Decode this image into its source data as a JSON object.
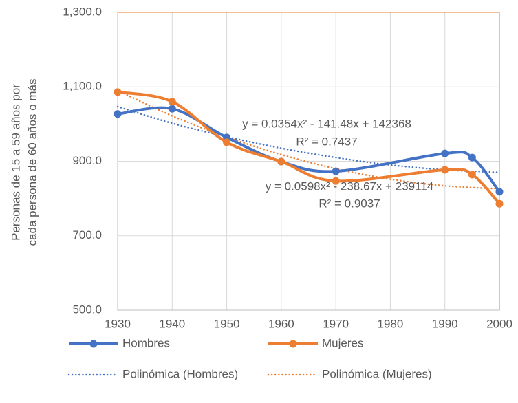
{
  "chart_data": {
    "type": "line",
    "ylabel": [
      "Personas de 15 a 59 años por",
      "cada persona de 60 años o más"
    ],
    "x": [
      1930,
      1940,
      1950,
      1960,
      1970,
      1990,
      1995,
      2000
    ],
    "series": [
      {
        "name": "Hombres",
        "color": "#4472c4",
        "values": [
          1027,
          1041,
          964,
          899,
          873,
          921,
          910,
          818
        ]
      },
      {
        "name": "Mujeres",
        "color": "#ed7d31",
        "values": [
          1086,
          1060,
          951,
          899,
          847,
          877,
          864,
          786
        ]
      }
    ],
    "trendlines": [
      {
        "name": "Polinómica (Hombres)",
        "color": "#4472c4",
        "style": "dotted",
        "x": [
          1930,
          1940,
          1950,
          1960,
          1970,
          1980,
          1990,
          2000
        ],
        "values": [
          1047,
          1002,
          966,
          935,
          910,
          890,
          877,
          870
        ],
        "equation": "y = 0.0354x² - 141.48x + 142368",
        "r2": "R² = 0.7437"
      },
      {
        "name": "Polinómica (Mujeres)",
        "color": "#ed7d31",
        "style": "dotted",
        "x": [
          1930,
          1940,
          1950,
          1960,
          1970,
          1980,
          1990,
          2000
        ],
        "values": [
          1090,
          1022,
          965,
          918,
          880,
          852,
          834,
          826
        ],
        "equation": "y = 0.0598x² - 238.67x + 239114",
        "r2": "R² = 0.9037"
      }
    ],
    "xlim": [
      1930,
      2000
    ],
    "xticks": [
      1930,
      1940,
      1950,
      1960,
      1970,
      1980,
      1990,
      2000
    ],
    "ylim": [
      500,
      1300
    ],
    "yticks": [
      {
        "value": 500,
        "label": "500.0"
      },
      {
        "value": 700,
        "label": "700.0"
      },
      {
        "value": 900,
        "label": "900.0"
      },
      {
        "value": 1100,
        "label": "1,100.0"
      },
      {
        "value": 1300,
        "label": "1,300.0"
      }
    ],
    "grid": true,
    "legend": "bottom"
  }
}
